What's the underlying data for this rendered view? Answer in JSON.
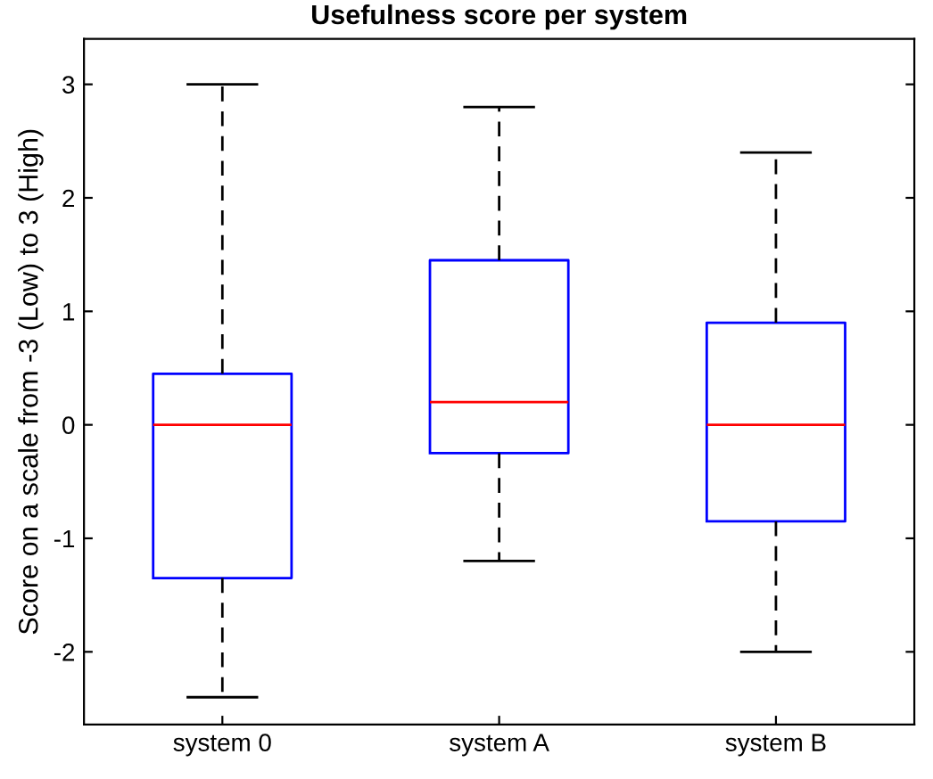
{
  "chart_data": {
    "type": "box",
    "title": "Usefulness score per system",
    "ylabel": "Score on a scale from -3 (Low) to 3 (High)",
    "categories": [
      "system 0",
      "system A",
      "system B"
    ],
    "boxes": [
      {
        "low": -2.4,
        "q1": -1.35,
        "median": 0,
        "q3": 0.45,
        "high": 3
      },
      {
        "low": -1.2,
        "q1": -0.25,
        "median": 0.2,
        "q3": 1.45,
        "high": 2.8
      },
      {
        "low": -2,
        "q1": -0.85,
        "median": 0,
        "q3": 0.9,
        "high": 2.4
      }
    ],
    "color": "#0000ff",
    "ylim": [
      -2.64,
      3.4
    ],
    "yticks": [
      -2,
      -1,
      0,
      1,
      2,
      3
    ],
    "grid": false
  }
}
